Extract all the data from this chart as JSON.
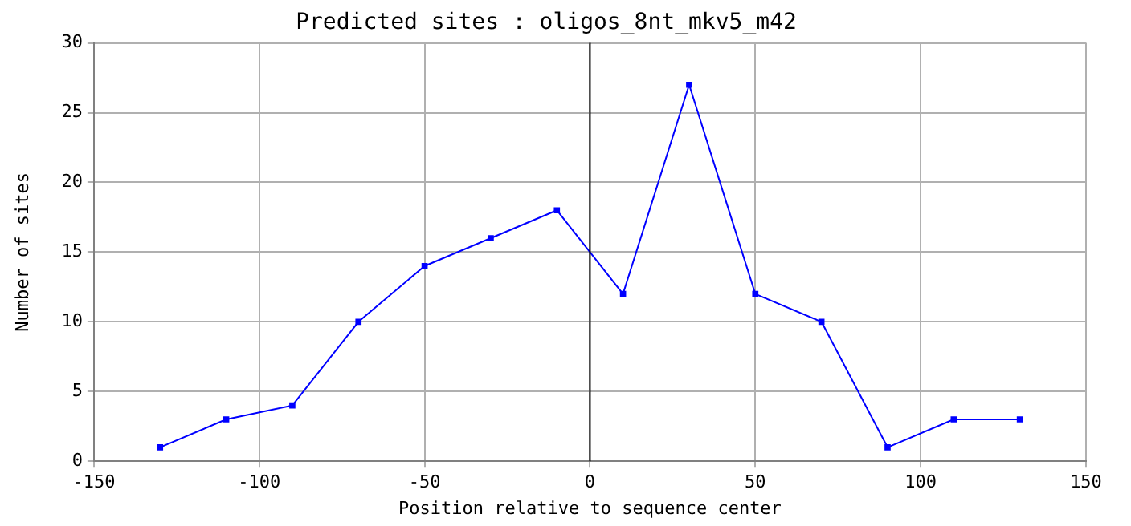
{
  "chart_data": {
    "type": "line",
    "title": "Predicted sites : oligos_8nt_mkv5_m42",
    "xlabel": "Position relative to sequence center",
    "ylabel": "Number of sites",
    "x": [
      -130,
      -110,
      -90,
      -70,
      -50,
      -30,
      -10,
      10,
      30,
      50,
      70,
      90,
      110,
      130
    ],
    "series": [
      {
        "color": "#0000ff",
        "values": [
          1,
          3,
          4,
          10,
          14,
          16,
          18,
          12,
          27,
          12,
          10,
          1,
          3,
          3
        ]
      }
    ],
    "xlim": [
      -150,
      150
    ],
    "xticks": [
      -150,
      -100,
      -50,
      0,
      50,
      100,
      150
    ],
    "ylim": [
      0,
      30
    ],
    "yticks": [
      0,
      5,
      10,
      15,
      20,
      25,
      30
    ],
    "ref_lines": [
      {
        "axis": "x",
        "value": 0,
        "color": "#000000"
      }
    ],
    "grid": true,
    "marker": "square",
    "line_style": "solid",
    "legend": false
  }
}
